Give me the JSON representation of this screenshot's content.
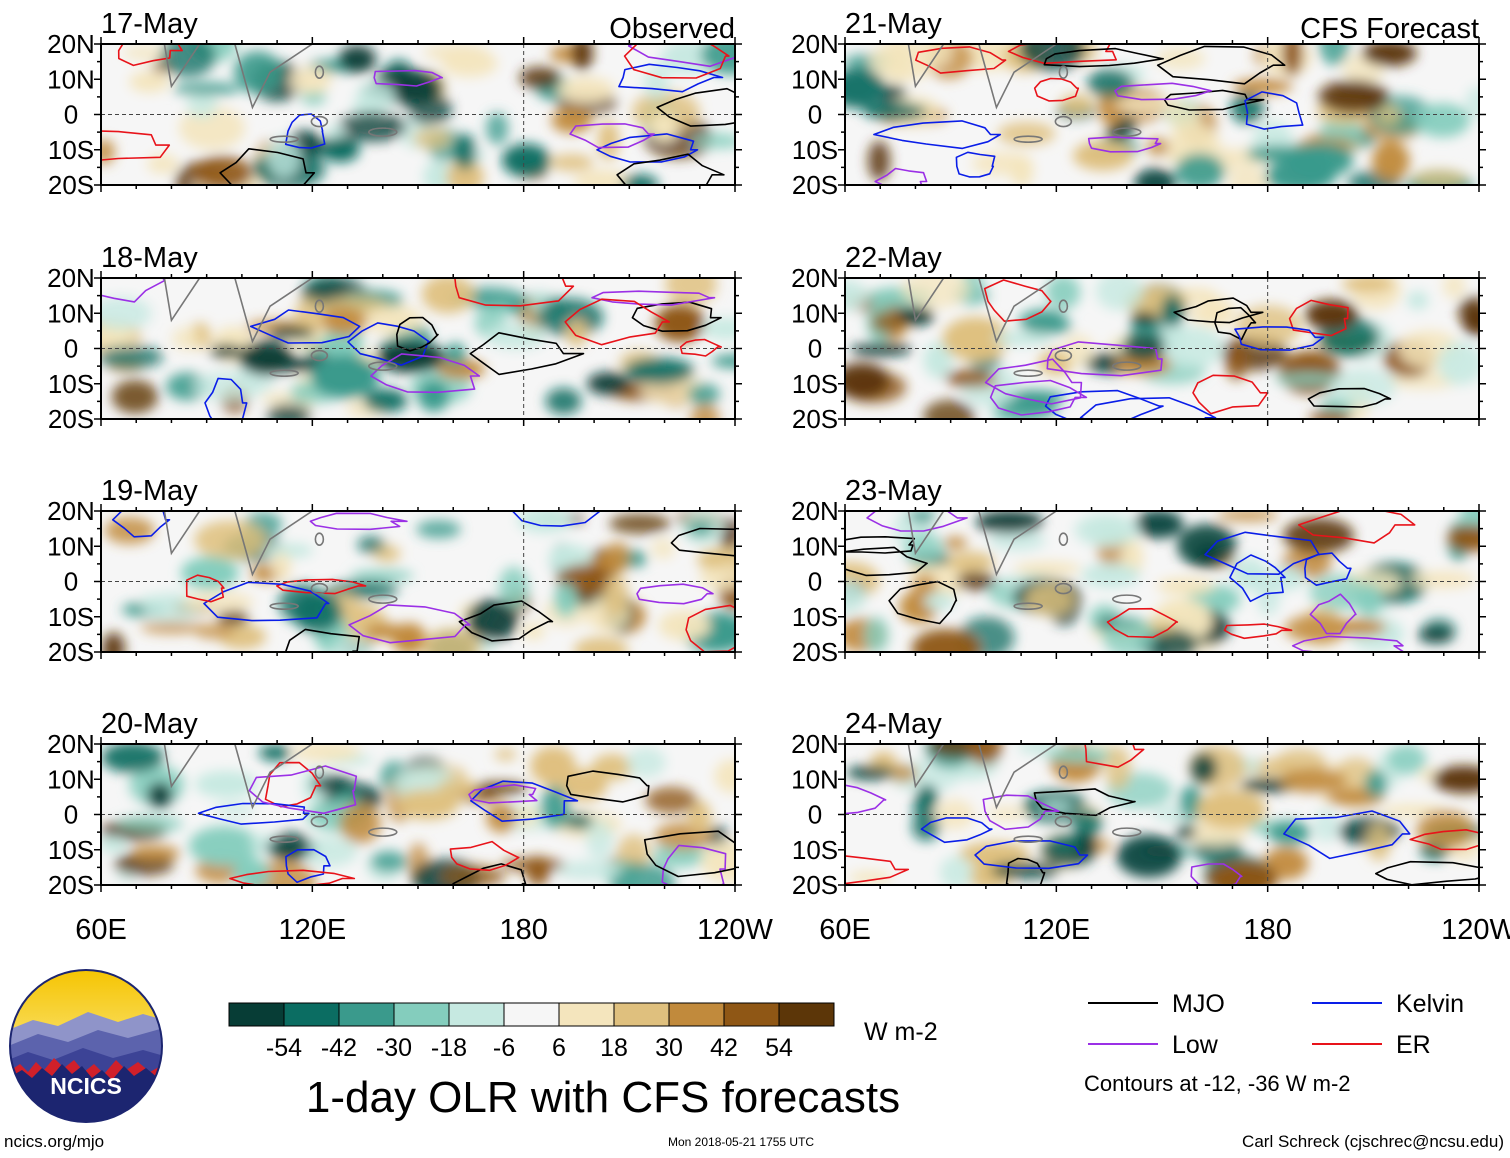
{
  "title": "1-day OLR with CFS forecasts",
  "columns": {
    "observed_label": "Observed",
    "forecast_label": "CFS Forecast"
  },
  "panels": [
    {
      "date": "17-May",
      "kind": "observed"
    },
    {
      "date": "18-May",
      "kind": "observed"
    },
    {
      "date": "19-May",
      "kind": "observed"
    },
    {
      "date": "20-May",
      "kind": "observed"
    },
    {
      "date": "21-May",
      "kind": "forecast"
    },
    {
      "date": "22-May",
      "kind": "forecast"
    },
    {
      "date": "23-May",
      "kind": "forecast"
    },
    {
      "date": "24-May",
      "kind": "forecast"
    }
  ],
  "chart_data": {
    "type": "heatmap",
    "variable": "OLR anomaly",
    "units": "W m-2",
    "x_ticks": [
      "60E",
      "120E",
      "180",
      "120W"
    ],
    "x_range_deg_east": [
      60,
      240
    ],
    "y_ticks": [
      "20N",
      "10N",
      "0",
      "10S",
      "20S"
    ],
    "y_range_deg": [
      -20,
      20
    ],
    "colorbar": {
      "tick_labels": [
        "-54",
        "-42",
        "-30",
        "-18",
        "-6",
        "6",
        "18",
        "30",
        "42",
        "54"
      ],
      "colors": [
        "#073d36",
        "#0b6d62",
        "#3a9a8c",
        "#84cdbd",
        "#c6e9e1",
        "#f6f6f6",
        "#f4e5bd",
        "#dfc07e",
        "#c18a3c",
        "#8f5715",
        "#5c3608"
      ],
      "units_label": "W m-2"
    },
    "contour_legend": [
      {
        "name": "MJO",
        "color": "#000000"
      },
      {
        "name": "Kelvin",
        "color": "#0a1ee8"
      },
      {
        "name": "Low",
        "color": "#9b30e6"
      },
      {
        "name": "ER",
        "color": "#e8131a"
      }
    ],
    "contour_note": "Contours at -12, -36 W m-2"
  },
  "logo": {
    "text": "NCICS"
  },
  "footer": {
    "url": "ncics.org/mjo",
    "timestamp": "Mon 2018-05-21 1755 UTC",
    "credit": "Carl Schreck (cjschrec@ncsu.edu)"
  }
}
